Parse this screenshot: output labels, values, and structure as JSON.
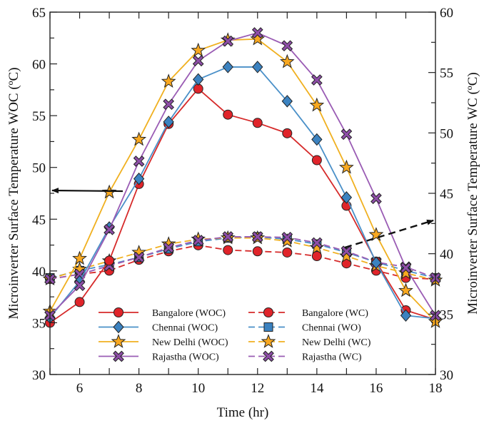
{
  "chart_data": {
    "type": "line",
    "xlabel": "Time (hr)",
    "ylabel": "Microinverter Surface Temperature WOC (ºC)",
    "ylabel_right": "Microinverter Surface Temperature WC (ºC)",
    "xlim": [
      5,
      18
    ],
    "ylim": [
      30,
      65
    ],
    "ylim_right": [
      30,
      60
    ],
    "x_ticks": [
      6,
      8,
      10,
      12,
      14,
      16,
      18
    ],
    "y_ticks": [
      30,
      35,
      40,
      45,
      50,
      55,
      60,
      65
    ],
    "y_ticks_right": [
      30,
      35,
      40,
      45,
      50,
      55,
      60
    ],
    "grid": false,
    "legend_placement": "bottom-center",
    "x": [
      5,
      6,
      7,
      8,
      9,
      10,
      11,
      12,
      13,
      14,
      15,
      16,
      17,
      18
    ],
    "series": [
      {
        "name": "Bangalore (WOC)",
        "axis": "left",
        "style": "solid",
        "marker": "circle",
        "color": "#d62a2a",
        "marker_color": "#e0242a",
        "values": [
          35.0,
          37.0,
          41.0,
          48.4,
          54.2,
          57.6,
          55.1,
          54.3,
          53.3,
          50.7,
          46.3,
          40.9,
          36.2,
          35.3
        ]
      },
      {
        "name": "Chennai (WOC)",
        "axis": "left",
        "style": "solid",
        "marker": "diamond",
        "color": "#4a90c8",
        "marker_color": "#3b82c0",
        "values": [
          35.5,
          39.0,
          44.2,
          48.9,
          54.4,
          58.5,
          59.7,
          59.7,
          56.4,
          52.7,
          47.1,
          40.8,
          35.7,
          35.4
        ]
      },
      {
        "name": "New Delhi (WOC)",
        "axis": "left",
        "style": "solid",
        "marker": "star",
        "color": "#f0b020",
        "marker_color": "#f8a820",
        "values": [
          36.1,
          41.2,
          47.6,
          52.7,
          58.3,
          61.3,
          62.3,
          62.4,
          60.2,
          56.0,
          50.0,
          43.5,
          38.1,
          35.1
        ]
      },
      {
        "name": "Rajastha (WOC)",
        "axis": "left",
        "style": "solid",
        "marker": "x",
        "color": "#9a5cb4",
        "marker_color": "#8e4ea8",
        "values": [
          35.7,
          38.6,
          44.0,
          50.6,
          56.1,
          60.3,
          62.2,
          63.0,
          61.75,
          58.45,
          53.2,
          47.0,
          40.3,
          35.7
        ]
      },
      {
        "name": "Bangalore (WC)",
        "axis": "right",
        "style": "dashed",
        "marker": "circle",
        "color": "#d62a2a",
        "marker_color": "#e0242a",
        "values": [
          37.9,
          38.3,
          38.6,
          39.5,
          40.2,
          40.7,
          40.3,
          40.2,
          40.1,
          39.8,
          39.2,
          38.6,
          38.0,
          37.9
        ]
      },
      {
        "name": "Chennai (WO)",
        "axis": "right",
        "style": "dashed",
        "marker": "square",
        "color": "#4a90c8",
        "marker_color": "#3b82c0",
        "values": [
          38.0,
          38.6,
          39.1,
          39.7,
          40.4,
          41.0,
          41.3,
          41.4,
          41.2,
          40.8,
          40.1,
          39.3,
          38.6,
          38.0
        ]
      },
      {
        "name": "New Delhi (WC)",
        "axis": "right",
        "style": "dashed",
        "marker": "star",
        "color": "#f0b020",
        "marker_color": "#f8a820",
        "values": [
          37.9,
          38.7,
          39.4,
          40.1,
          40.8,
          41.2,
          41.3,
          41.3,
          41.05,
          40.5,
          39.8,
          39.0,
          38.4,
          37.8
        ]
      },
      {
        "name": "Rajastha (WC)",
        "axis": "right",
        "style": "dashed",
        "marker": "x",
        "color": "#9a5cb4",
        "marker_color": "#8e4ea8",
        "values": [
          37.9,
          38.3,
          39.0,
          39.7,
          40.5,
          41.1,
          41.4,
          41.4,
          41.35,
          40.9,
          40.2,
          39.3,
          38.9,
          38.0
        ]
      }
    ],
    "annotations": [
      {
        "type": "arrow",
        "style": "solid",
        "direction": "left",
        "meaning": "WOC curves read on left axis"
      },
      {
        "type": "arrow",
        "style": "dashed",
        "direction": "right",
        "meaning": "WC curves read on right axis"
      }
    ]
  }
}
